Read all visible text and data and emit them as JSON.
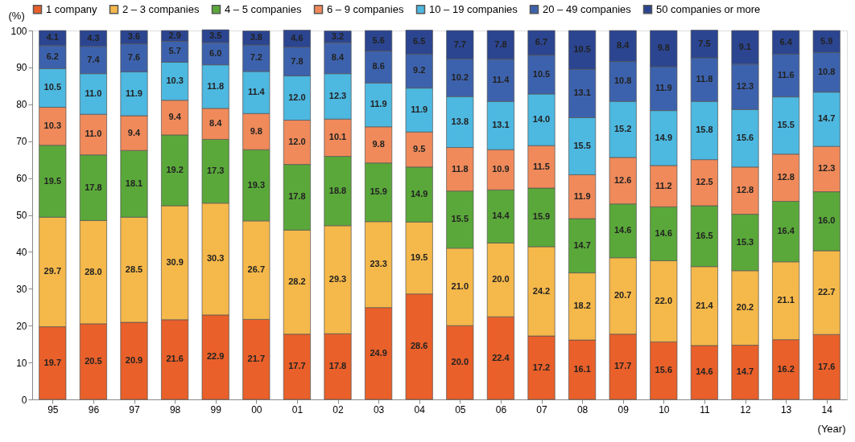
{
  "chart_data": {
    "type": "bar",
    "stacked": true,
    "ylabel": "(%)",
    "xlabel": "(Year)",
    "categories": [
      "95",
      "96",
      "97",
      "98",
      "99",
      "00",
      "01",
      "02",
      "03",
      "04",
      "05",
      "06",
      "07",
      "08",
      "09",
      "10",
      "11",
      "12",
      "13",
      "14"
    ],
    "series": [
      {
        "name": "1 company",
        "color": "#e9602a",
        "values": [
          19.7,
          20.5,
          20.9,
          21.6,
          22.9,
          21.7,
          17.7,
          17.8,
          24.9,
          28.6,
          20.0,
          22.4,
          17.2,
          16.1,
          17.7,
          15.6,
          14.6,
          14.7,
          16.2,
          17.6
        ],
        "value_labels": [
          "19.7",
          "20.5",
          "20.9",
          "21.6",
          "22.9",
          "21.7",
          "17.7",
          "17.8",
          "24.9",
          "28.6",
          "20.0",
          "22.4",
          "17.2",
          "16.1",
          "17.7",
          "15.6",
          "14.6",
          "14.7",
          "16.2",
          "17.6"
        ]
      },
      {
        "name": "2 – 3 companies",
        "color": "#f5b84a",
        "values": [
          29.7,
          28.0,
          28.5,
          30.9,
          30.3,
          26.7,
          28.2,
          29.3,
          23.3,
          19.5,
          21.0,
          20.0,
          24.2,
          18.2,
          20.7,
          22.0,
          21.4,
          20.2,
          21.1,
          22.7
        ],
        "value_labels": [
          "29.7",
          "28.0",
          "28.5",
          "30.9",
          "30.3",
          "26.7",
          "28.2",
          "29.3",
          "23.3",
          "19.5",
          "21.0",
          "20.0",
          "24.2",
          "18.2",
          "20.7",
          "22.0",
          "21.4",
          "20.2",
          "21.1",
          "22.7"
        ]
      },
      {
        "name": "4 – 5 companies",
        "color": "#5aa83a",
        "values": [
          19.5,
          17.8,
          18.1,
          19.2,
          17.3,
          19.3,
          17.8,
          18.8,
          15.9,
          14.9,
          15.5,
          14.4,
          15.9,
          14.7,
          14.6,
          14.6,
          16.5,
          15.3,
          16.4,
          16.0
        ],
        "value_labels": [
          "19.5",
          "17.8",
          "18.1",
          "19.2",
          "17.3",
          "19.3",
          "17.8",
          "18.8",
          "15.9",
          "14.9",
          "15.5",
          "14.4",
          "15.9",
          "14.7",
          "14.6",
          "14.6",
          "16.5",
          "15.3",
          "16.4",
          "16.0"
        ]
      },
      {
        "name": "6 – 9 companies",
        "color": "#f08a5a",
        "values": [
          10.3,
          11.0,
          9.4,
          9.4,
          8.4,
          9.8,
          12.0,
          10.1,
          9.8,
          9.5,
          11.8,
          10.9,
          11.5,
          11.9,
          12.6,
          11.2,
          12.5,
          12.8,
          12.8,
          12.3
        ],
        "value_labels": [
          "10.3",
          "11.0",
          "9.4",
          "9.4",
          "8.4",
          "9.8",
          "12.0",
          "10.1",
          "9.8",
          "9.5",
          "11.8",
          "10.9",
          "11.5",
          "11.9",
          "12.6",
          "11.2",
          "12.5",
          "12.8",
          "12.8",
          "12.3"
        ]
      },
      {
        "name": "10 – 19 companies",
        "color": "#4db8e0",
        "values": [
          10.5,
          11.0,
          11.9,
          10.3,
          11.8,
          11.4,
          12.0,
          12.3,
          11.9,
          11.9,
          13.8,
          13.1,
          14.0,
          15.5,
          15.2,
          14.9,
          15.8,
          15.6,
          15.5,
          14.7
        ],
        "value_labels": [
          "10.5",
          "11.0",
          "11.9",
          "10.3",
          "11.8",
          "11.4",
          "12.0",
          "12.3",
          "11.9",
          "11.9",
          "13.8",
          "13.1",
          "14.0",
          "15.5",
          "15.2",
          "14.9",
          "15.8",
          "15.6",
          "15.5",
          "14.7"
        ]
      },
      {
        "name": "20 – 49 companies",
        "color": "#3d62ad",
        "values": [
          6.2,
          7.4,
          7.6,
          5.7,
          6.0,
          7.2,
          7.8,
          8.4,
          8.6,
          9.2,
          10.2,
          11.4,
          10.5,
          13.1,
          10.8,
          11.9,
          11.8,
          12.3,
          11.6,
          10.8
        ],
        "value_labels": [
          "6.2",
          "7.4",
          "7.6",
          "5.7",
          "6.0",
          "7.2",
          "7.8",
          "8.4",
          "8.6",
          "9.2",
          "10.2",
          "11.4",
          "10.5",
          "13.1",
          "10.8",
          "11.9",
          "11.8",
          "12.3",
          "11.6",
          "10.8"
        ]
      },
      {
        "name": "50 companies or more",
        "color": "#2b4590",
        "values": [
          4.1,
          4.3,
          3.6,
          2.9,
          3.5,
          3.8,
          4.6,
          3.2,
          5.6,
          6.5,
          7.7,
          7.8,
          6.7,
          10.5,
          8.4,
          9.8,
          7.5,
          9.1,
          6.4,
          5.9
        ],
        "value_labels": [
          "4.1",
          "4.3",
          "3.6",
          "2.9",
          "3.5",
          "3.8",
          "4.6",
          "3.2",
          "5.6",
          "6.5",
          "7.7",
          "7.8",
          "6.7",
          "10.5",
          "8.4",
          "9.8",
          "7.5",
          "9.1",
          "6.4",
          "5.9"
        ]
      }
    ],
    "ylim": [
      0,
      100
    ],
    "yticks": [
      0,
      10,
      20,
      30,
      40,
      50,
      60,
      70,
      80,
      90,
      100
    ],
    "legend": "top",
    "grid": false
  }
}
